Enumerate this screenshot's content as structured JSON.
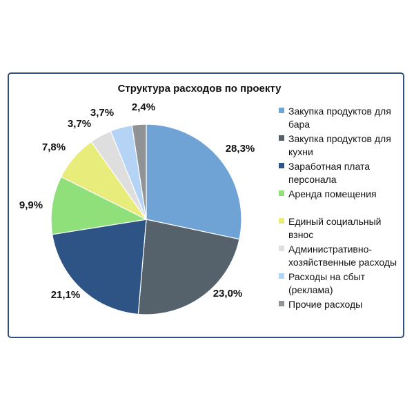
{
  "chart_data": {
    "type": "pie",
    "title": "Структура расходов по проекту",
    "slices": [
      {
        "name": "Закупка продуктов для бара",
        "legend_label": "Закупка продуктов для\nбара",
        "value": 28.3,
        "value_label": "28,3%",
        "color": "#6fa3d6"
      },
      {
        "name": "Закупка продуктов для кухни",
        "legend_label": "Закупка продуктов для\nкухни",
        "value": 23.0,
        "value_label": "23,0%",
        "color": "#55626c"
      },
      {
        "name": "Заработная плата персонала",
        "legend_label": "Заработная плата\nперсонала",
        "value": 21.1,
        "value_label": "21,1%",
        "color": "#2d5485"
      },
      {
        "name": "Аренда помещения",
        "legend_label": "Аренда помещения",
        "value": 9.9,
        "value_label": "9,9%",
        "color": "#8fe07a"
      },
      {
        "name": "Единый социальный взнос",
        "legend_label": "Единый социальный\nвзнос",
        "value": 7.8,
        "value_label": "7,8%",
        "color": "#e8ec7a"
      },
      {
        "name": "Административно-хозяйственные расходы",
        "legend_label": "Административно-\nхозяйственные расходы",
        "value": 3.7,
        "value_label": "3,7%",
        "color": "#dedede"
      },
      {
        "name": "Расходы на сбыт (реклама)",
        "legend_label": "Расходы на сбыт\n(реклама)",
        "value": 3.7,
        "value_label": "3,7%",
        "color": "#b5d4f5"
      },
      {
        "name": "Прочие расходы",
        "legend_label": "Прочие расходы",
        "value": 2.4,
        "value_label": "2,4%",
        "color": "#8f9396"
      }
    ],
    "legend_position": "right"
  }
}
